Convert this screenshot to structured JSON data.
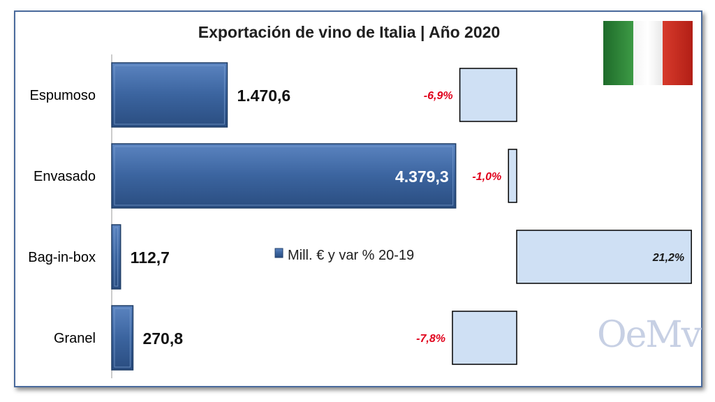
{
  "chart_data": {
    "type": "bar",
    "orientation": "horizontal",
    "title": "Exportación de vino de Italia | Año 2020",
    "categories": [
      "Espumoso",
      "Envasado",
      "Bag-in-box",
      "Granel"
    ],
    "series": [
      {
        "name": "Mill. € y var % 20-19",
        "values": [
          1470.6,
          4379.3,
          112.7,
          270.8
        ],
        "value_labels": [
          "1.470,6",
          "4.379,3",
          "112,7",
          "270,8"
        ]
      },
      {
        "values": [
          -6.9,
          -1.0,
          21.2,
          -7.8
        ],
        "value_labels": [
          "-6,9%",
          "-1,0%",
          "21,2%",
          "-7,8%"
        ]
      }
    ],
    "legend": {
      "label": "Mill. € y var % 20-19",
      "placement": "center"
    },
    "grid": false,
    "colors": {
      "value_bar": "#3f6aa5",
      "var_bar_fill": "#cfe0f4",
      "var_bar_stroke": "#000000",
      "negative_label": "#e0001b",
      "positive_label": "#1a1a1a",
      "frame": "#4a6a9c"
    }
  },
  "decorations": {
    "flag": "italy-flag-icon",
    "watermark": "OeMv"
  }
}
